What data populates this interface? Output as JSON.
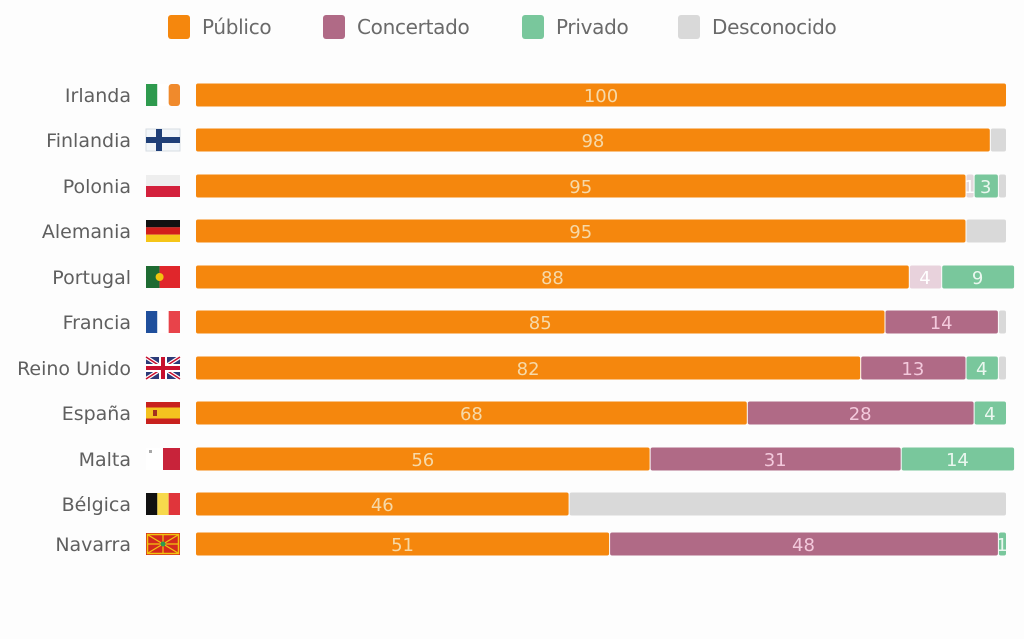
{
  "chart_data": {
    "type": "bar",
    "orientation": "horizontal",
    "stacked": true,
    "title": "",
    "xlabel": "",
    "ylabel": "",
    "xlim": [
      0,
      100
    ],
    "grid": false,
    "legend_position": "top-center",
    "categories": [
      "Irlanda",
      "Finlandia",
      "Polonia",
      "Alemania",
      "Portugal",
      "Francia",
      "Reino Unido",
      "España",
      "Malta",
      "Bélgica",
      "Navarra"
    ],
    "flags": [
      "flag-ireland-icon",
      "flag-finland-icon",
      "flag-poland-icon",
      "flag-germany-icon",
      "flag-portugal-icon",
      "flag-france-icon",
      "flag-united-kingdom-icon",
      "flag-spain-icon",
      "flag-malta-icon",
      "flag-belgium-icon",
      "flag-navarra-icon"
    ],
    "series": [
      {
        "name": "Público",
        "color": "#f5870d",
        "label_color": "#f6d9a8",
        "values": [
          100,
          98,
          95,
          95,
          88,
          85,
          82,
          68,
          56,
          46,
          51
        ]
      },
      {
        "name": "Concertado",
        "color": "#b06a86",
        "label_color": "#f3c9dc",
        "values": [
          0,
          0,
          1,
          0,
          4,
          14,
          13,
          28,
          31,
          0,
          48
        ]
      },
      {
        "name": "Privado",
        "color": "#79c79c",
        "label_color": "#eaf7ef",
        "values": [
          0,
          0,
          3,
          0,
          9,
          0,
          4,
          4,
          14,
          0,
          1
        ]
      },
      {
        "name": "Desconocido",
        "color": "#d9d9d9",
        "label_color": "#ffffff",
        "values": [
          0,
          2,
          1,
          5,
          0,
          1,
          1,
          0,
          0,
          54,
          0
        ]
      }
    ],
    "data_labels": [
      [
        "100",
        "",
        "",
        ""
      ],
      [
        "98",
        "",
        "",
        ""
      ],
      [
        "95",
        "1",
        "3",
        ""
      ],
      [
        "95",
        "",
        "",
        ""
      ],
      [
        "88",
        "4",
        "9",
        ""
      ],
      [
        "85",
        "14",
        "",
        ""
      ],
      [
        "82",
        "13",
        "4",
        ""
      ],
      [
        "68",
        "28",
        "4",
        ""
      ],
      [
        "56",
        "31",
        "14",
        ""
      ],
      [
        "46",
        "",
        "",
        ""
      ],
      [
        "51",
        "48",
        "1",
        ""
      ]
    ],
    "faded_segments": [
      [
        2,
        1
      ],
      [
        4,
        1
      ]
    ]
  }
}
